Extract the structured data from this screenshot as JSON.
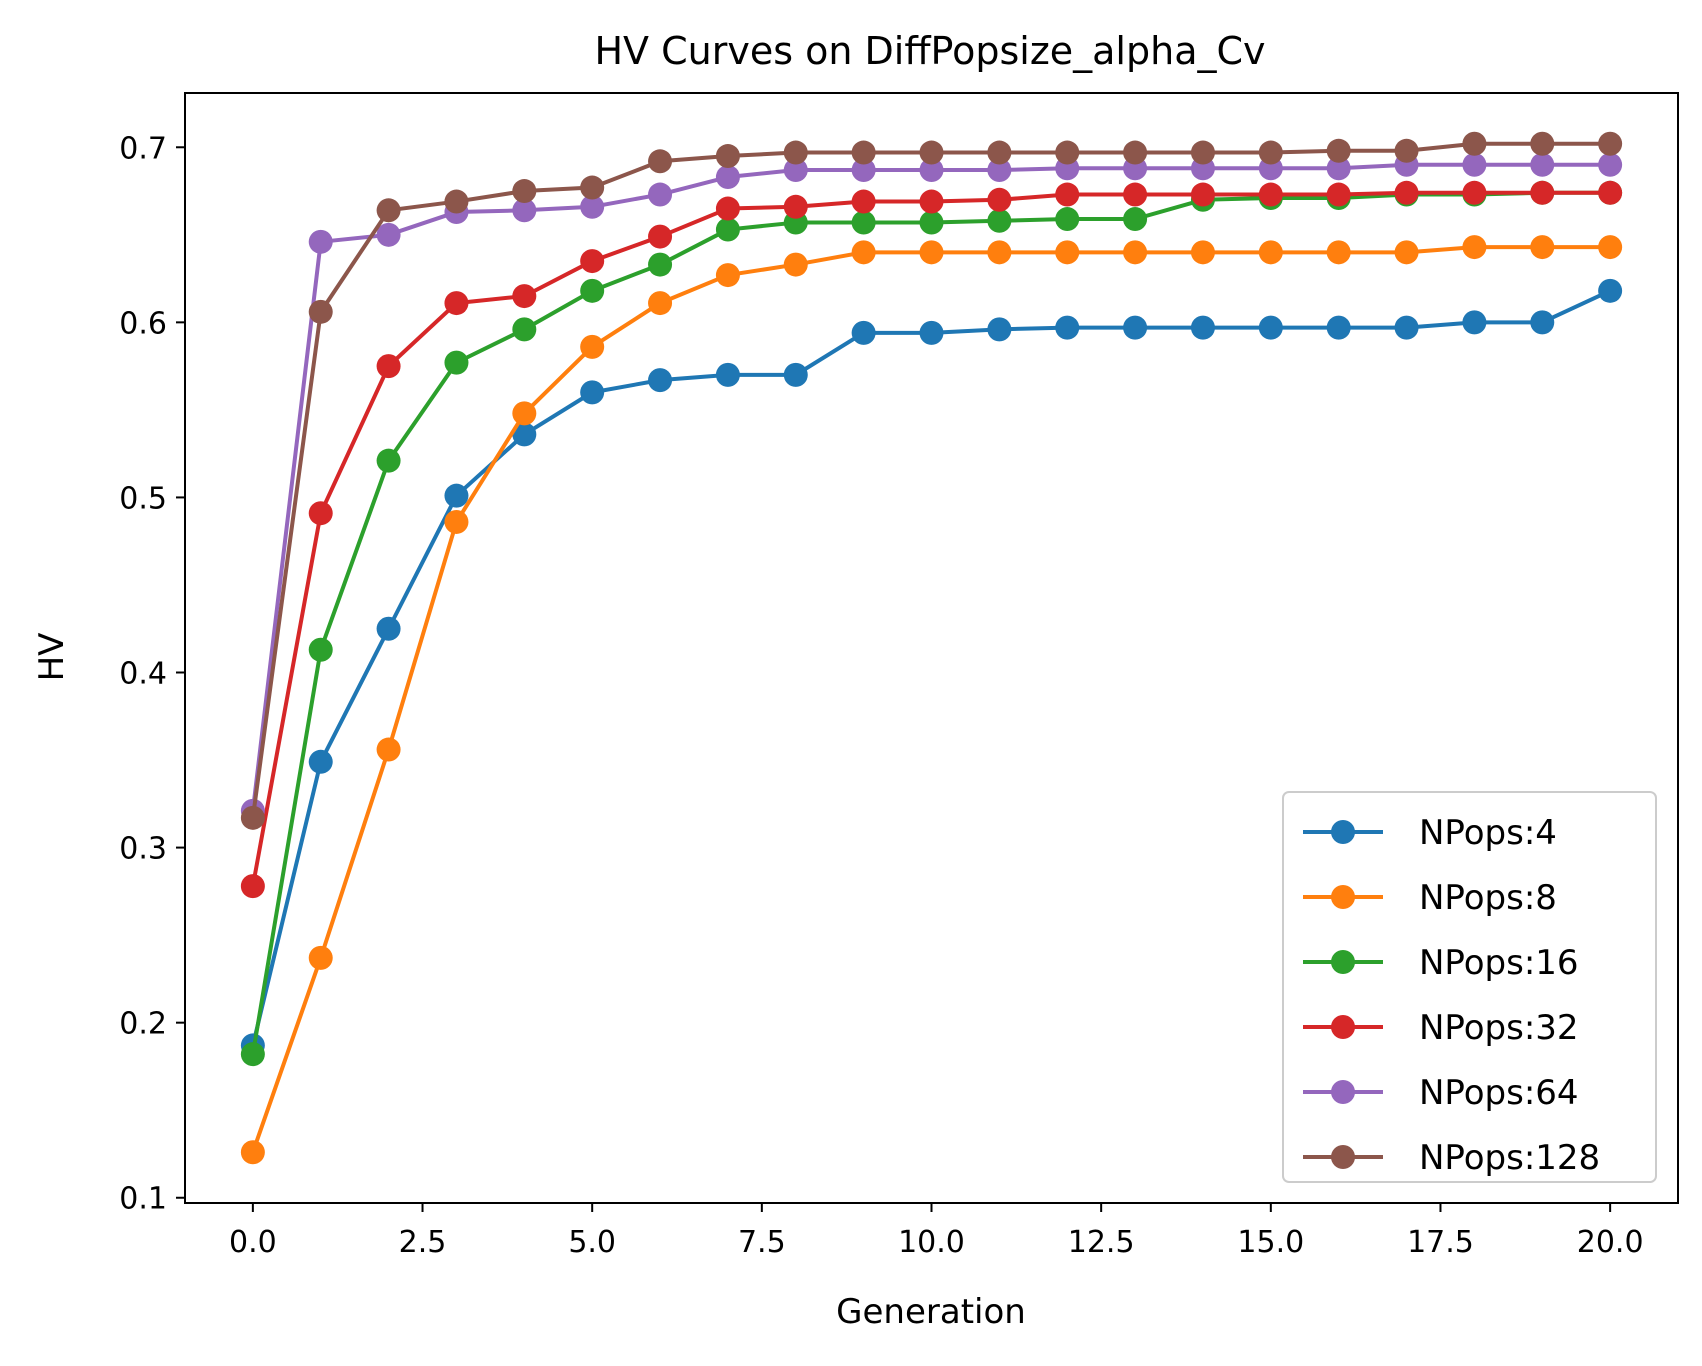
{
  "chart_data": {
    "type": "line",
    "title": "HV Curves on DiffPopsize_alpha_Cv",
    "xlabel": "Generation",
    "ylabel": "HV",
    "xlim": [
      -1.0,
      21.0
    ],
    "ylim": [
      0.097,
      0.731
    ],
    "xticks": [
      0.0,
      2.5,
      5.0,
      7.5,
      10.0,
      12.5,
      15.0,
      17.5,
      20.0
    ],
    "xtick_labels": [
      "0.0",
      "2.5",
      "5.0",
      "7.5",
      "10.0",
      "12.5",
      "15.0",
      "17.5",
      "20.0"
    ],
    "yticks": [
      0.1,
      0.2,
      0.3,
      0.4,
      0.5,
      0.6,
      0.7
    ],
    "ytick_labels": [
      "0.1",
      "0.2",
      "0.3",
      "0.4",
      "0.5",
      "0.6",
      "0.7"
    ],
    "grid": false,
    "legend_position": "bottom-right",
    "x": [
      0,
      1,
      2,
      3,
      4,
      5,
      6,
      7,
      8,
      9,
      10,
      11,
      12,
      13,
      14,
      15,
      16,
      17,
      18,
      19,
      20
    ],
    "series": [
      {
        "name": "NPops:4",
        "color": "#1f77b4",
        "values": [
          0.187,
          0.349,
          0.425,
          0.501,
          0.536,
          0.56,
          0.567,
          0.57,
          0.57,
          0.594,
          0.594,
          0.596,
          0.597,
          0.597,
          0.597,
          0.597,
          0.597,
          0.597,
          0.6,
          0.6,
          0.618
        ]
      },
      {
        "name": "NPops:8",
        "color": "#ff7f0e",
        "values": [
          0.126,
          0.237,
          0.356,
          0.486,
          0.548,
          0.586,
          0.611,
          0.627,
          0.633,
          0.64,
          0.64,
          0.64,
          0.64,
          0.64,
          0.64,
          0.64,
          0.64,
          0.64,
          0.643,
          0.643,
          0.643
        ]
      },
      {
        "name": "NPops:16",
        "color": "#2ca02c",
        "values": [
          0.182,
          0.413,
          0.521,
          0.577,
          0.596,
          0.618,
          0.633,
          0.653,
          0.657,
          0.657,
          0.657,
          0.658,
          0.659,
          0.659,
          0.67,
          0.671,
          0.671,
          0.673,
          0.673,
          0.674,
          0.674
        ]
      },
      {
        "name": "NPops:32",
        "color": "#d62728",
        "values": [
          0.278,
          0.491,
          0.575,
          0.611,
          0.615,
          0.635,
          0.649,
          0.665,
          0.666,
          0.669,
          0.669,
          0.67,
          0.673,
          0.673,
          0.673,
          0.673,
          0.673,
          0.674,
          0.674,
          0.674,
          0.674
        ]
      },
      {
        "name": "NPops:64",
        "color": "#9467bd",
        "values": [
          0.321,
          0.646,
          0.65,
          0.663,
          0.664,
          0.666,
          0.673,
          0.683,
          0.687,
          0.687,
          0.687,
          0.687,
          0.688,
          0.688,
          0.688,
          0.688,
          0.688,
          0.69,
          0.69,
          0.69,
          0.69
        ]
      },
      {
        "name": "NPops:128",
        "color": "#8c564b",
        "values": [
          0.317,
          0.606,
          0.664,
          0.669,
          0.675,
          0.677,
          0.692,
          0.695,
          0.697,
          0.697,
          0.697,
          0.697,
          0.697,
          0.697,
          0.697,
          0.697,
          0.698,
          0.698,
          0.702,
          0.702,
          0.702
        ]
      }
    ]
  }
}
